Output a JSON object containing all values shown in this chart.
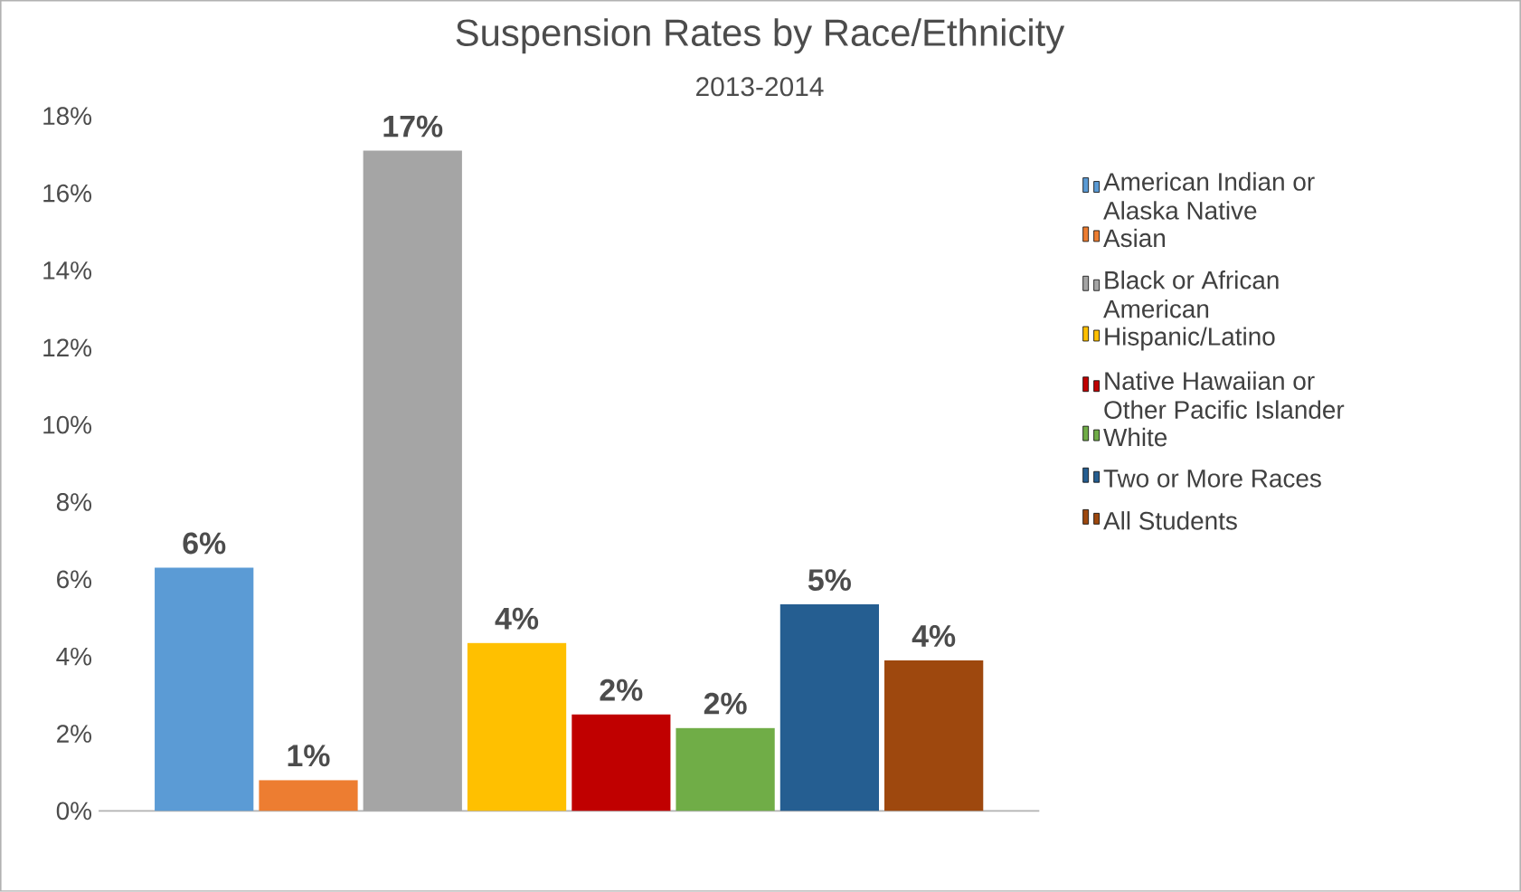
{
  "chart_data": {
    "type": "bar",
    "title": "Suspension  Rates by Race/Ethnicity",
    "subtitle": "2013-2014",
    "categories": [
      null
    ],
    "series": [
      {
        "name": "American Indian or Alaska Native",
        "color": "#5b9bd5",
        "values": [
          6.3
        ],
        "value_labels": [
          "6%"
        ]
      },
      {
        "name": "Asian",
        "color": "#ed7d31",
        "values": [
          0.8
        ],
        "value_labels": [
          "1%"
        ]
      },
      {
        "name": "Black or African American",
        "color": "#a5a5a5",
        "values": [
          17.1
        ],
        "value_labels": [
          "17%"
        ]
      },
      {
        "name": "Hispanic/Latino",
        "color": "#ffc000",
        "values": [
          4.35
        ],
        "value_labels": [
          "4%"
        ]
      },
      {
        "name": "Native Hawaiian or Other Pacific Islander",
        "color": "#c00000",
        "values": [
          2.5
        ],
        "value_labels": [
          "2%"
        ]
      },
      {
        "name": "White",
        "color": "#70ad47",
        "values": [
          2.15
        ],
        "value_labels": [
          "2%"
        ]
      },
      {
        "name": "Two or More Races",
        "color": "#255e91",
        "values": [
          5.35
        ],
        "value_labels": [
          "5%"
        ]
      },
      {
        "name": "All Students",
        "color": "#9e480e",
        "values": [
          3.9
        ],
        "value_labels": [
          "4%"
        ]
      }
    ],
    "ylim": [
      0,
      18
    ],
    "yticks": [
      {
        "value": 0,
        "label": "0%"
      },
      {
        "value": 2,
        "label": "2%"
      },
      {
        "value": 4,
        "label": "4%"
      },
      {
        "value": 6,
        "label": "6%"
      },
      {
        "value": 8,
        "label": "8%"
      },
      {
        "value": 10,
        "label": "10%"
      },
      {
        "value": 12,
        "label": "12%"
      },
      {
        "value": 14,
        "label": "14%"
      },
      {
        "value": 16,
        "label": "16%"
      },
      {
        "value": 18,
        "label": "18%"
      }
    ],
    "legend": "right",
    "grid": false
  }
}
